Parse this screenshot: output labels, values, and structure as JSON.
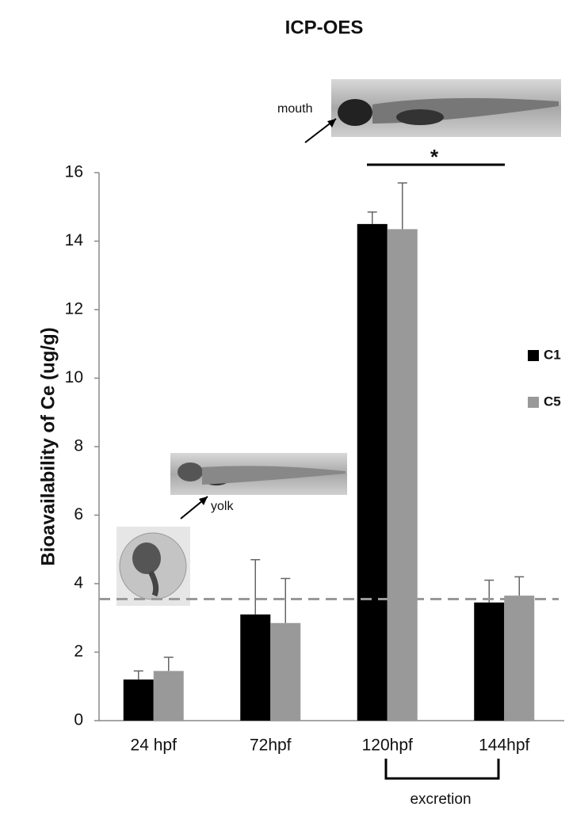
{
  "chart_data": {
    "type": "bar",
    "title": "ICP-OES",
    "y_label": "Bioavailability of Ce (ug/g)",
    "categories": [
      "24 hpf",
      "72hpf",
      "120hpf",
      "144hpf"
    ],
    "series": [
      {
        "name": "C1",
        "color": "#000000",
        "values": [
          1.2,
          3.1,
          14.5,
          3.45
        ],
        "errors": [
          0.25,
          1.6,
          0.35,
          0.65
        ]
      },
      {
        "name": "C5",
        "color": "#999999",
        "values": [
          1.45,
          2.85,
          14.35,
          3.65
        ],
        "errors": [
          0.4,
          1.3,
          1.35,
          0.55
        ]
      }
    ],
    "ylim": [
      0,
      16
    ],
    "yticks": [
      0,
      2,
      4,
      6,
      8,
      10,
      12,
      14,
      16
    ],
    "reference_line": 3.55,
    "significance": "*",
    "bracket_label": "excretion",
    "annotations": [
      "mouth",
      "yolk"
    ]
  }
}
